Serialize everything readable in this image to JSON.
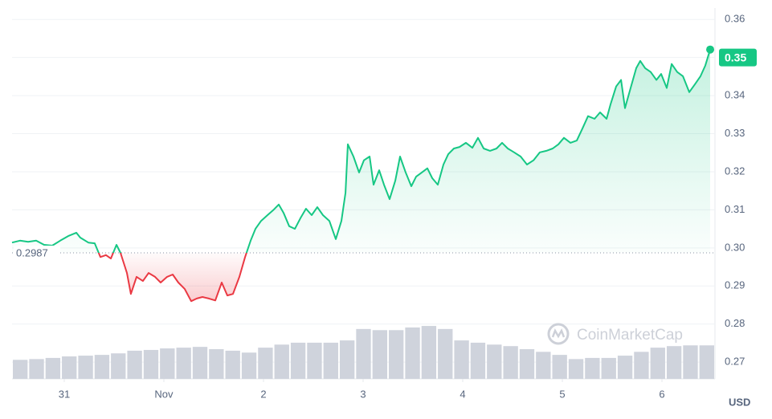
{
  "chart_data": {
    "type": "line",
    "currency": "USD",
    "watermark": "CoinMarketCap",
    "color_up": "#16c784",
    "color_down": "#ea3943",
    "reference_value": 0.2987,
    "current_price": 0.35,
    "grid": true,
    "xlim": [
      -0.524,
      6.532
    ],
    "ylim": [
      0.2656,
      0.363
    ],
    "xticks": [
      {
        "value": 0,
        "label": "31"
      },
      {
        "value": 1,
        "label": "Nov"
      },
      2,
      3,
      4,
      5,
      6
    ],
    "yticks": [
      0.27,
      0.28,
      0.29,
      {
        "value": 0.3,
        "label": "0.30"
      },
      0.31,
      0.32,
      0.33,
      0.34,
      0.35,
      0.36
    ],
    "x": [
      -0.524,
      -0.444,
      -0.363,
      -0.282,
      -0.202,
      -0.121,
      -0.04,
      0.04,
      0.121,
      0.161,
      0.242,
      0.306,
      0.363,
      0.419,
      0.468,
      0.524,
      0.565,
      0.629,
      0.669,
      0.726,
      0.79,
      0.847,
      0.911,
      0.968,
      1.032,
      1.089,
      1.145,
      1.21,
      1.274,
      1.331,
      1.387,
      1.452,
      1.516,
      1.581,
      1.637,
      1.694,
      1.758,
      1.815,
      1.871,
      1.919,
      1.976,
      2.04,
      2.097,
      2.153,
      2.202,
      2.258,
      2.315,
      2.371,
      2.427,
      2.484,
      2.54,
      2.597,
      2.661,
      2.726,
      2.782,
      2.823,
      2.847,
      2.903,
      2.96,
      3.008,
      3.065,
      3.105,
      3.161,
      3.21,
      3.266,
      3.323,
      3.371,
      3.427,
      3.484,
      3.532,
      3.589,
      3.645,
      3.694,
      3.75,
      3.806,
      3.855,
      3.911,
      3.968,
      4.032,
      4.097,
      4.153,
      4.21,
      4.274,
      4.339,
      4.395,
      4.452,
      4.516,
      4.581,
      4.645,
      4.71,
      4.774,
      4.839,
      4.903,
      4.96,
      5.016,
      5.081,
      5.145,
      5.202,
      5.258,
      5.323,
      5.379,
      5.444,
      5.484,
      5.54,
      5.589,
      5.629,
      5.685,
      5.742,
      5.782,
      5.831,
      5.887,
      5.944,
      5.992,
      6.048,
      6.097,
      6.153,
      6.21,
      6.274,
      6.331,
      6.387,
      6.435,
      6.484
    ],
    "values": [
      0.3014,
      0.3019,
      0.3016,
      0.3019,
      0.3008,
      0.3006,
      0.3019,
      0.3031,
      0.304,
      0.3027,
      0.3014,
      0.3012,
      0.2976,
      0.2981,
      0.2972,
      0.3008,
      0.2987,
      0.2934,
      0.2879,
      0.2924,
      0.2913,
      0.2934,
      0.2924,
      0.2909,
      0.2924,
      0.293,
      0.2909,
      0.2892,
      0.286,
      0.2867,
      0.2871,
      0.2867,
      0.2862,
      0.2909,
      0.2875,
      0.2879,
      0.2924,
      0.2976,
      0.3019,
      0.305,
      0.3071,
      0.3086,
      0.3099,
      0.3114,
      0.3092,
      0.3057,
      0.305,
      0.3078,
      0.3103,
      0.3086,
      0.3107,
      0.3086,
      0.3071,
      0.3023,
      0.3071,
      0.3145,
      0.3272,
      0.324,
      0.3198,
      0.323,
      0.324,
      0.3166,
      0.3204,
      0.3166,
      0.3128,
      0.3177,
      0.324,
      0.3198,
      0.3162,
      0.3187,
      0.3198,
      0.3209,
      0.3183,
      0.3166,
      0.3219,
      0.3246,
      0.3261,
      0.3265,
      0.3276,
      0.3263,
      0.3289,
      0.3261,
      0.3255,
      0.3261,
      0.3276,
      0.3261,
      0.3251,
      0.324,
      0.3219,
      0.323,
      0.3251,
      0.3255,
      0.3261,
      0.3272,
      0.3289,
      0.3276,
      0.3282,
      0.3314,
      0.3346,
      0.3339,
      0.3356,
      0.3339,
      0.3377,
      0.3424,
      0.3441,
      0.3367,
      0.342,
      0.3472,
      0.3491,
      0.3472,
      0.3462,
      0.3441,
      0.3457,
      0.342,
      0.3483,
      0.3462,
      0.3451,
      0.3409,
      0.343,
      0.3451,
      0.3479,
      0.3521
    ],
    "volume": {
      "color": "#cfd3dc",
      "values": [
        0.2706,
        0.2708,
        0.2711,
        0.2715,
        0.2717,
        0.2719,
        0.2723,
        0.273,
        0.2732,
        0.2736,
        0.2738,
        0.274,
        0.2734,
        0.273,
        0.2725,
        0.2738,
        0.2746,
        0.2751,
        0.2751,
        0.2751,
        0.2757,
        0.2787,
        0.2784,
        0.2784,
        0.2791,
        0.2795,
        0.2787,
        0.2757,
        0.2751,
        0.2746,
        0.2742,
        0.2734,
        0.2727,
        0.2719,
        0.2708,
        0.2711,
        0.2711,
        0.2717,
        0.2727,
        0.2738,
        0.2742,
        0.2744,
        0.2744
      ]
    }
  }
}
